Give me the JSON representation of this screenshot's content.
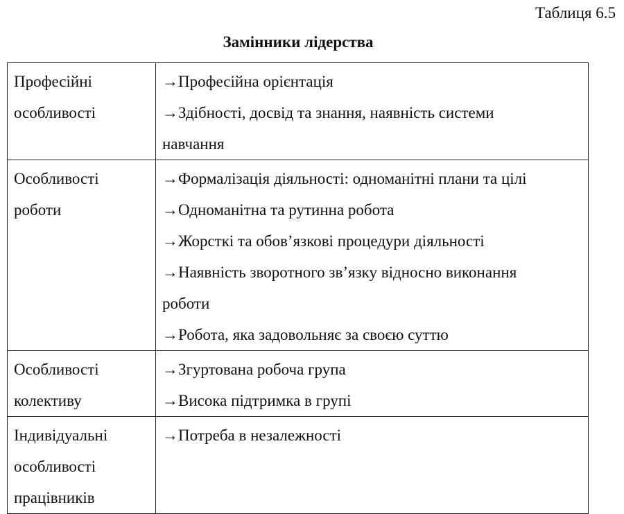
{
  "caption": "Таблиця 6.5",
  "title": "Замінники лідерства",
  "rows": [
    {
      "label_lines": [
        "Професійні",
        "особливості"
      ],
      "items": [
        {
          "lines": [
            "→Професійна орієнтація"
          ]
        },
        {
          "lines": [
            "→Здібності, досвід та знання, наявність системи",
            "навчання"
          ]
        }
      ]
    },
    {
      "label_lines": [
        "Особливості",
        "роботи"
      ],
      "items": [
        {
          "lines": [
            "→Формалізація діяльності: одноманітні плани та цілі"
          ]
        },
        {
          "lines": [
            "→Одноманітна та рутинна робота"
          ]
        },
        {
          "lines": [
            "→Жорсткі та обов’язкові процедури діяльності"
          ]
        },
        {
          "lines": [
            "→Наявність зворотного зв’язку відносно виконання",
            "роботи"
          ]
        },
        {
          "lines": [
            "→Робота, яка задовольняє за своєю суттю"
          ]
        }
      ]
    },
    {
      "label_lines": [
        "Особливості",
        "колективу"
      ],
      "items": [
        {
          "lines": [
            "→Згуртована робоча група"
          ]
        },
        {
          "lines": [
            "→Висока підтримка в групі"
          ]
        }
      ]
    },
    {
      "label_lines": [
        "Індивідуальні",
        "особливості",
        "працівників"
      ],
      "items": [
        {
          "lines": [
            "→Потреба в незалежності"
          ]
        }
      ]
    }
  ]
}
